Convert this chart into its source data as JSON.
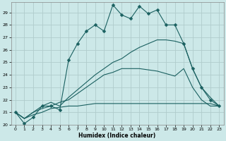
{
  "xlabel": "Humidex (Indice chaleur)",
  "bg_color": "#cce8e8",
  "grid_color": "#b0cccc",
  "line_color": "#1a6060",
  "xlim": [
    -0.5,
    23.5
  ],
  "ylim": [
    20,
    29.8
  ],
  "yticks": [
    20,
    21,
    22,
    23,
    24,
    25,
    26,
    27,
    28,
    29
  ],
  "xticks": [
    0,
    1,
    2,
    3,
    4,
    5,
    6,
    7,
    8,
    9,
    10,
    11,
    12,
    13,
    14,
    15,
    16,
    17,
    18,
    19,
    20,
    21,
    22,
    23
  ],
  "series1_x": [
    0,
    1,
    2,
    3,
    4,
    5,
    6,
    7,
    8,
    9,
    10,
    11,
    12,
    13,
    14,
    15,
    16,
    17,
    18,
    19,
    20,
    21,
    22,
    23
  ],
  "series1_y": [
    21.0,
    20.1,
    20.6,
    21.5,
    21.5,
    21.2,
    25.2,
    26.5,
    27.5,
    28.0,
    27.5,
    29.6,
    28.8,
    28.5,
    29.5,
    28.9,
    29.2,
    28.0,
    28.0,
    26.5,
    24.5,
    23.0,
    22.0,
    21.5
  ],
  "series2_x": [
    0,
    1,
    2,
    3,
    4,
    5,
    6,
    7,
    8,
    9,
    10,
    11,
    12,
    13,
    14,
    15,
    16,
    17,
    18,
    19,
    20,
    21,
    22,
    23
  ],
  "series2_y": [
    21.0,
    20.5,
    21.0,
    21.5,
    21.8,
    21.5,
    22.2,
    22.8,
    23.4,
    24.0,
    24.5,
    25.0,
    25.3,
    25.8,
    26.2,
    26.5,
    26.8,
    26.8,
    26.7,
    26.5,
    24.5,
    23.0,
    22.2,
    21.5
  ],
  "series3_x": [
    0,
    1,
    2,
    3,
    4,
    5,
    6,
    7,
    8,
    9,
    10,
    11,
    12,
    13,
    14,
    15,
    16,
    17,
    18,
    19,
    20,
    21,
    22,
    23
  ],
  "series3_y": [
    21.0,
    20.5,
    20.8,
    21.0,
    21.3,
    21.4,
    21.5,
    21.5,
    21.6,
    21.7,
    21.7,
    21.7,
    21.7,
    21.7,
    21.7,
    21.7,
    21.7,
    21.7,
    21.7,
    21.7,
    21.7,
    21.7,
    21.7,
    21.5
  ],
  "series4_x": [
    0,
    1,
    2,
    3,
    4,
    5,
    6,
    7,
    8,
    9,
    10,
    11,
    12,
    13,
    14,
    15,
    16,
    17,
    18,
    19,
    20,
    21,
    22,
    23
  ],
  "series4_y": [
    21.0,
    20.5,
    21.0,
    21.3,
    21.5,
    21.8,
    22.0,
    22.5,
    23.0,
    23.5,
    24.0,
    24.2,
    24.5,
    24.5,
    24.5,
    24.4,
    24.3,
    24.1,
    23.9,
    24.5,
    23.0,
    22.0,
    21.5,
    21.5
  ]
}
